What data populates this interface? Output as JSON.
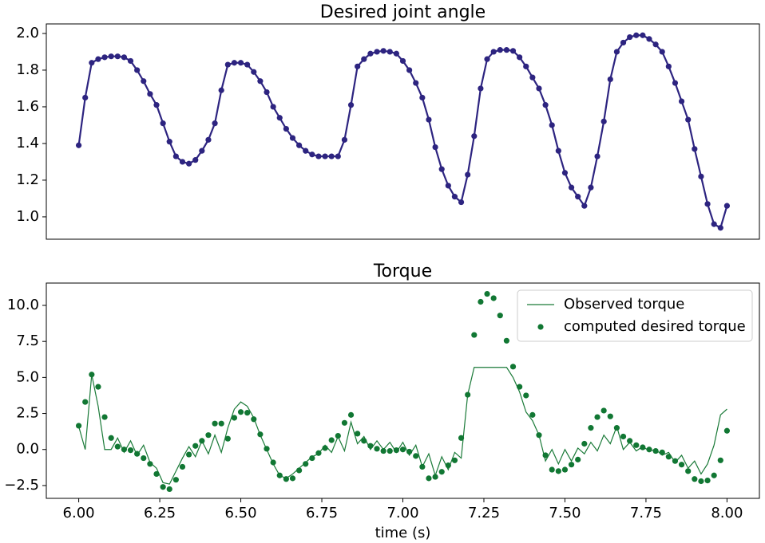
{
  "chart_data": [
    {
      "type": "line",
      "title": "Desired joint angle",
      "color": "#2d2480",
      "markers": true,
      "x": [
        6,
        6.02,
        6.04,
        6.06,
        6.08,
        6.1,
        6.12,
        6.14,
        6.16,
        6.18,
        6.2,
        6.22,
        6.24,
        6.26,
        6.28,
        6.3,
        6.32,
        6.34,
        6.36,
        6.38,
        6.4,
        6.42,
        6.44,
        6.46,
        6.48,
        6.5,
        6.52,
        6.54,
        6.56,
        6.58,
        6.6,
        6.62,
        6.64,
        6.66,
        6.68,
        6.7,
        6.72,
        6.74,
        6.76,
        6.78,
        6.8,
        6.82,
        6.84,
        6.86,
        6.88,
        6.9,
        6.92,
        6.94,
        6.96,
        6.98,
        7,
        7.02,
        7.04,
        7.06,
        7.08,
        7.1,
        7.12,
        7.14,
        7.16,
        7.18,
        7.2,
        7.22,
        7.24,
        7.26,
        7.28,
        7.3,
        7.32,
        7.34,
        7.36,
        7.38,
        7.4,
        7.42,
        7.44,
        7.46,
        7.48,
        7.5,
        7.52,
        7.54,
        7.56,
        7.58,
        7.6,
        7.62,
        7.64,
        7.66,
        7.68,
        7.7,
        7.72,
        7.74,
        7.76,
        7.78,
        7.8,
        7.82,
        7.84,
        7.86,
        7.88,
        7.9,
        7.92,
        7.94,
        7.96,
        7.98,
        8
      ],
      "values": [
        1.39,
        1.65,
        1.84,
        1.86,
        1.87,
        1.875,
        1.875,
        1.87,
        1.85,
        1.8,
        1.74,
        1.67,
        1.61,
        1.51,
        1.41,
        1.33,
        1.3,
        1.29,
        1.31,
        1.36,
        1.42,
        1.51,
        1.69,
        1.83,
        1.84,
        1.84,
        1.83,
        1.79,
        1.74,
        1.68,
        1.6,
        1.54,
        1.48,
        1.43,
        1.39,
        1.36,
        1.34,
        1.33,
        1.33,
        1.33,
        1.33,
        1.42,
        1.61,
        1.82,
        1.86,
        1.89,
        1.9,
        1.905,
        1.9,
        1.89,
        1.85,
        1.8,
        1.73,
        1.65,
        1.53,
        1.38,
        1.26,
        1.17,
        1.11,
        1.08,
        1.23,
        1.44,
        1.7,
        1.86,
        1.9,
        1.91,
        1.91,
        1.905,
        1.87,
        1.82,
        1.76,
        1.7,
        1.61,
        1.5,
        1.36,
        1.24,
        1.16,
        1.11,
        1.06,
        1.16,
        1.33,
        1.52,
        1.75,
        1.9,
        1.95,
        1.98,
        1.99,
        1.99,
        1.97,
        1.94,
        1.9,
        1.82,
        1.73,
        1.63,
        1.53,
        1.37,
        1.22,
        1.07,
        0.96,
        0.94,
        1.06
      ],
      "xlim": [
        5.9,
        8.1
      ],
      "ylim": [
        0.878,
        2.052
      ],
      "yticks": [
        {
          "value": 1.0,
          "label": "1.0"
        },
        1.2,
        1.4,
        1.6,
        1.8,
        {
          "value": 2.0,
          "label": "2.0"
        }
      ]
    },
    {
      "type": "line",
      "title": "Torque",
      "xlabel": "time (s)",
      "legend": "upper right",
      "x": [
        6,
        6.02,
        6.04,
        6.06,
        6.08,
        6.1,
        6.12,
        6.14,
        6.16,
        6.18,
        6.2,
        6.22,
        6.24,
        6.26,
        6.28,
        6.3,
        6.32,
        6.34,
        6.36,
        6.38,
        6.4,
        6.42,
        6.44,
        6.46,
        6.48,
        6.5,
        6.52,
        6.54,
        6.56,
        6.58,
        6.6,
        6.62,
        6.64,
        6.66,
        6.68,
        6.7,
        6.72,
        6.74,
        6.76,
        6.78,
        6.8,
        6.82,
        6.84,
        6.86,
        6.88,
        6.9,
        6.92,
        6.94,
        6.96,
        6.98,
        7,
        7.02,
        7.04,
        7.06,
        7.08,
        7.1,
        7.12,
        7.14,
        7.16,
        7.18,
        7.2,
        7.22,
        7.24,
        7.26,
        7.28,
        7.3,
        7.32,
        7.34,
        7.36,
        7.38,
        7.4,
        7.42,
        7.44,
        7.46,
        7.48,
        7.5,
        7.52,
        7.54,
        7.56,
        7.58,
        7.6,
        7.62,
        7.64,
        7.66,
        7.68,
        7.7,
        7.72,
        7.74,
        7.76,
        7.78,
        7.8,
        7.82,
        7.84,
        7.86,
        7.88,
        7.9,
        7.92,
        7.94,
        7.96,
        7.98,
        8
      ],
      "series": [
        {
          "name": "Observed torque",
          "type": "line",
          "color": "#1a7a38",
          "values": [
            1.6,
            0.0,
            5.2,
            3.0,
            0.0,
            0.0,
            0.8,
            -0.2,
            0.6,
            -0.4,
            0.3,
            -0.9,
            -1.3,
            -2.3,
            -2.4,
            -1.5,
            -0.6,
            0.2,
            -0.5,
            0.6,
            -0.3,
            1.0,
            -0.2,
            1.5,
            2.8,
            3.3,
            3.0,
            2.2,
            1.0,
            0.0,
            -1.0,
            -1.8,
            -2.0,
            -1.7,
            -1.3,
            -0.9,
            -0.5,
            -0.3,
            0.3,
            -0.2,
            0.9,
            -0.1,
            1.9,
            0.4,
            0.9,
            0.0,
            0.6,
            0.0,
            0.5,
            -0.2,
            0.5,
            -0.4,
            0.3,
            -1.2,
            -0.3,
            -1.8,
            -0.5,
            -1.4,
            -0.2,
            -0.6,
            3.8,
            5.7,
            5.7,
            5.7,
            5.7,
            5.7,
            5.7,
            5.0,
            4.0,
            2.6,
            2.0,
            1.0,
            -0.8,
            0.0,
            -1.0,
            0.0,
            -0.8,
            0.1,
            -0.3,
            0.5,
            -0.1,
            1.0,
            0.4,
            1.6,
            0.0,
            0.5,
            -0.1,
            0.2,
            -0.1,
            0.0,
            -0.4,
            -0.2,
            -0.9,
            -0.4,
            -1.3,
            -0.8,
            -1.7,
            -1.0,
            0.3,
            2.4,
            2.8
          ]
        },
        {
          "name": "computed desired torque",
          "type": "scatter",
          "color": "#117733",
          "values": [
            1.65,
            3.3,
            5.2,
            4.35,
            2.25,
            0.8,
            0.2,
            0.0,
            -0.05,
            -0.3,
            -0.6,
            -1.0,
            -1.7,
            -2.6,
            -2.75,
            -2.1,
            -1.2,
            -0.35,
            0.25,
            0.6,
            1.0,
            1.8,
            1.8,
            0.75,
            2.2,
            2.6,
            2.55,
            2.1,
            1.05,
            0.05,
            -0.9,
            -1.8,
            -2.05,
            -2.0,
            -1.45,
            -1.0,
            -0.6,
            -0.25,
            0.1,
            0.65,
            0.95,
            1.85,
            2.4,
            1.1,
            0.6,
            0.25,
            0.05,
            -0.1,
            -0.1,
            -0.05,
            0.0,
            -0.15,
            -0.45,
            -1.2,
            -2.0,
            -1.9,
            -1.55,
            -1.1,
            -0.75,
            0.8,
            3.8,
            7.95,
            10.25,
            10.8,
            10.5,
            9.3,
            7.55,
            5.75,
            4.35,
            3.75,
            2.4,
            1.0,
            -0.4,
            -1.4,
            -1.5,
            -1.4,
            -1.05,
            -0.7,
            0.4,
            1.5,
            2.25,
            2.7,
            2.3,
            1.5,
            0.9,
            0.6,
            0.3,
            0.15,
            0.0,
            -0.1,
            -0.2,
            -0.5,
            -0.8,
            -1.05,
            -1.5,
            -2.05,
            -2.2,
            -2.15,
            -1.8,
            -0.75,
            1.3
          ]
        }
      ],
      "xlim": [
        5.9,
        8.1
      ],
      "ylim": [
        -3.39,
        11.55
      ],
      "xticks": [
        {
          "value": 6,
          "label": "6.00"
        },
        {
          "value": 6.25,
          "label": "6.25"
        },
        {
          "value": 6.5,
          "label": "6.50"
        },
        {
          "value": 6.75,
          "label": "6.75"
        },
        {
          "value": 7,
          "label": "7.00"
        },
        {
          "value": 7.25,
          "label": "7.25"
        },
        {
          "value": 7.5,
          "label": "7.50"
        },
        {
          "value": 7.75,
          "label": "7.75"
        },
        {
          "value": 8,
          "label": "8.00"
        }
      ],
      "yticks": [
        {
          "value": -2.5,
          "label": "−2.5"
        },
        {
          "value": 0,
          "label": "0.0"
        },
        {
          "value": 2.5,
          "label": "2.5"
        },
        {
          "value": 5,
          "label": "5.0"
        },
        {
          "value": 7.5,
          "label": "7.5"
        },
        {
          "value": 10,
          "label": "10.0"
        }
      ]
    }
  ]
}
